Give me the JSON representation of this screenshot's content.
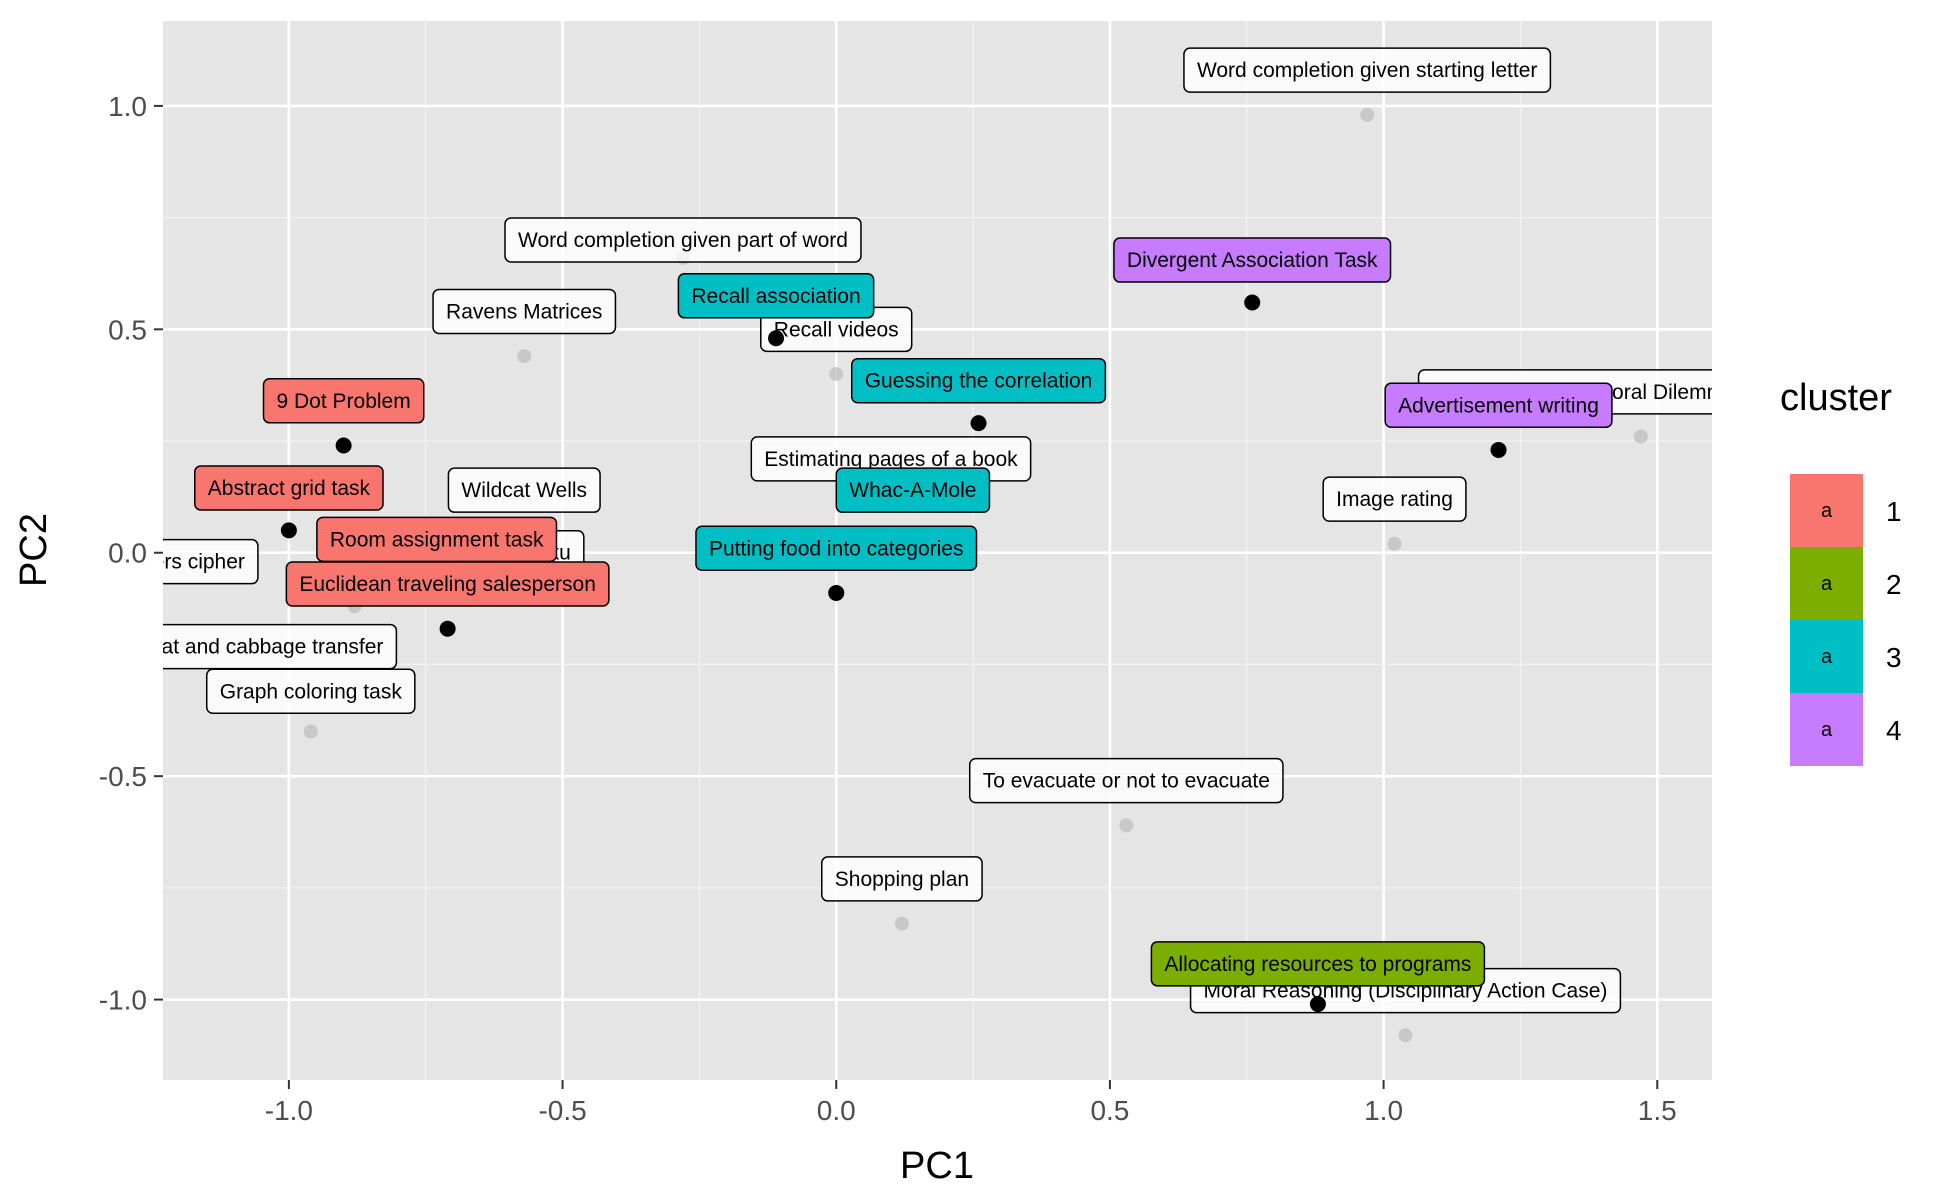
{
  "chart_data": {
    "type": "scatter",
    "xlabel": "PC1",
    "ylabel": "PC2",
    "xlim": [
      -1.23,
      1.6
    ],
    "ylim": [
      -1.18,
      1.19
    ],
    "x_ticks": [
      -1.0,
      -0.5,
      0.0,
      0.5,
      1.0,
      1.5
    ],
    "x_tick_labels": [
      "-1.0",
      "-0.5",
      "0.0",
      "0.5",
      "1.0",
      "1.5"
    ],
    "y_ticks": [
      -1.0,
      -0.5,
      0.0,
      0.5,
      1.0
    ],
    "y_tick_labels": [
      "-1.0",
      "-0.5",
      "0.0",
      "0.5",
      "1.0"
    ],
    "grid": true,
    "panel_background": "#E5E5E5",
    "legend": {
      "title": "cluster",
      "position": "right",
      "key_glyph": "a",
      "entries": [
        {
          "label": "1",
          "color": "#F8766D"
        },
        {
          "label": "2",
          "color": "#7CAE00"
        },
        {
          "label": "3",
          "color": "#00BFC4"
        },
        {
          "label": "4",
          "color": "#C77CFF"
        }
      ]
    },
    "tasks": [
      {
        "label": "Word completion given starting letter",
        "x": 0.97,
        "y": 0.98,
        "lx": 0.97,
        "ly": 1.08
      },
      {
        "label": "Word completion given part of word",
        "x": -0.28,
        "y": 0.66,
        "lx": -0.28,
        "ly": 0.7
      },
      {
        "label": "Ravens Matrices",
        "x": -0.57,
        "y": 0.44,
        "lx": -0.57,
        "ly": 0.54
      },
      {
        "label": "Recall videos",
        "x": 0.0,
        "y": 0.4,
        "lx": 0.0,
        "ly": 0.5
      },
      {
        "label": "Estimating pages of a book",
        "x": 0.1,
        "y": 0.11,
        "lx": 0.1,
        "ly": 0.21
      },
      {
        "label": "Wildcat Wells",
        "x": -0.57,
        "y": 0.04,
        "lx": -0.57,
        "ly": 0.14
      },
      {
        "label": "Image rating",
        "x": 1.02,
        "y": 0.02,
        "lx": 1.02,
        "ly": 0.12
      },
      {
        "label": "Discussion Task (Moral Dilemma Discussion)",
        "x": 1.47,
        "y": 0.26,
        "lx": 1.47,
        "ly": 0.36
      },
      {
        "label": "Letters-to-numbers cipher",
        "x": -1.1,
        "y": -0.02,
        "lx": -1.3,
        "ly": -0.02
      },
      {
        "label": "Sudoku",
        "x": -0.88,
        "y": -0.12,
        "lx": -0.55,
        "ly": 0.0
      },
      {
        "label": "Wolf, goat and cabbage transfer",
        "x": -1.1,
        "y": -0.3,
        "lx": -1.1,
        "ly": -0.21
      },
      {
        "label": "Graph coloring task",
        "x": -0.96,
        "y": -0.4,
        "lx": -0.96,
        "ly": -0.31
      },
      {
        "label": "To evacuate or not to evacuate",
        "x": 0.53,
        "y": -0.61,
        "lx": 0.53,
        "ly": -0.51
      },
      {
        "label": "Shopping plan",
        "x": 0.12,
        "y": -0.83,
        "lx": 0.12,
        "ly": -0.73
      },
      {
        "label": "Moral Reasoning (Disciplinary Action Case)",
        "x": 1.04,
        "y": -1.08,
        "lx": 1.04,
        "ly": -0.98
      }
    ],
    "centroids": [
      {
        "cluster": "1",
        "x": -0.9,
        "y": 0.24
      },
      {
        "cluster": "1",
        "x": -1.0,
        "y": 0.05
      },
      {
        "cluster": "1",
        "x": -0.71,
        "y": -0.17
      },
      {
        "cluster": "2",
        "x": 0.88,
        "y": -1.01
      },
      {
        "cluster": "3",
        "x": -0.11,
        "y": 0.48
      },
      {
        "cluster": "3",
        "x": 0.26,
        "y": 0.29
      },
      {
        "cluster": "3",
        "x": 0.0,
        "y": -0.09
      },
      {
        "cluster": "4",
        "x": 0.76,
        "y": 0.56
      },
      {
        "cluster": "4",
        "x": 1.21,
        "y": 0.23
      }
    ],
    "labels": [
      {
        "label": "9 Dot Problem",
        "cluster": "1",
        "lx": -0.9,
        "ly": 0.34
      },
      {
        "label": "Abstract grid task",
        "cluster": "1",
        "lx": -1.0,
        "ly": 0.145
      },
      {
        "label": "Room assignment task",
        "cluster": "1",
        "lx": -0.73,
        "ly": 0.03
      },
      {
        "label": "Euclidean traveling salesperson",
        "cluster": "1",
        "lx": -0.71,
        "ly": -0.07
      },
      {
        "label": "Allocating resources to programs",
        "cluster": "2",
        "lx": 0.88,
        "ly": -0.92
      },
      {
        "label": "Recall association",
        "cluster": "3",
        "lx": -0.11,
        "ly": 0.575
      },
      {
        "label": "Guessing the correlation",
        "cluster": "3",
        "lx": 0.26,
        "ly": 0.385
      },
      {
        "label": "Whac-A-Mole",
        "cluster": "3",
        "lx": 0.14,
        "ly": 0.14
      },
      {
        "label": "Putting food into categories",
        "cluster": "3",
        "lx": 0.0,
        "ly": 0.01
      },
      {
        "label": "Divergent Association Task",
        "cluster": "4",
        "lx": 0.76,
        "ly": 0.655
      },
      {
        "label": "Advertisement writing",
        "cluster": "4",
        "lx": 1.21,
        "ly": 0.33
      }
    ]
  }
}
